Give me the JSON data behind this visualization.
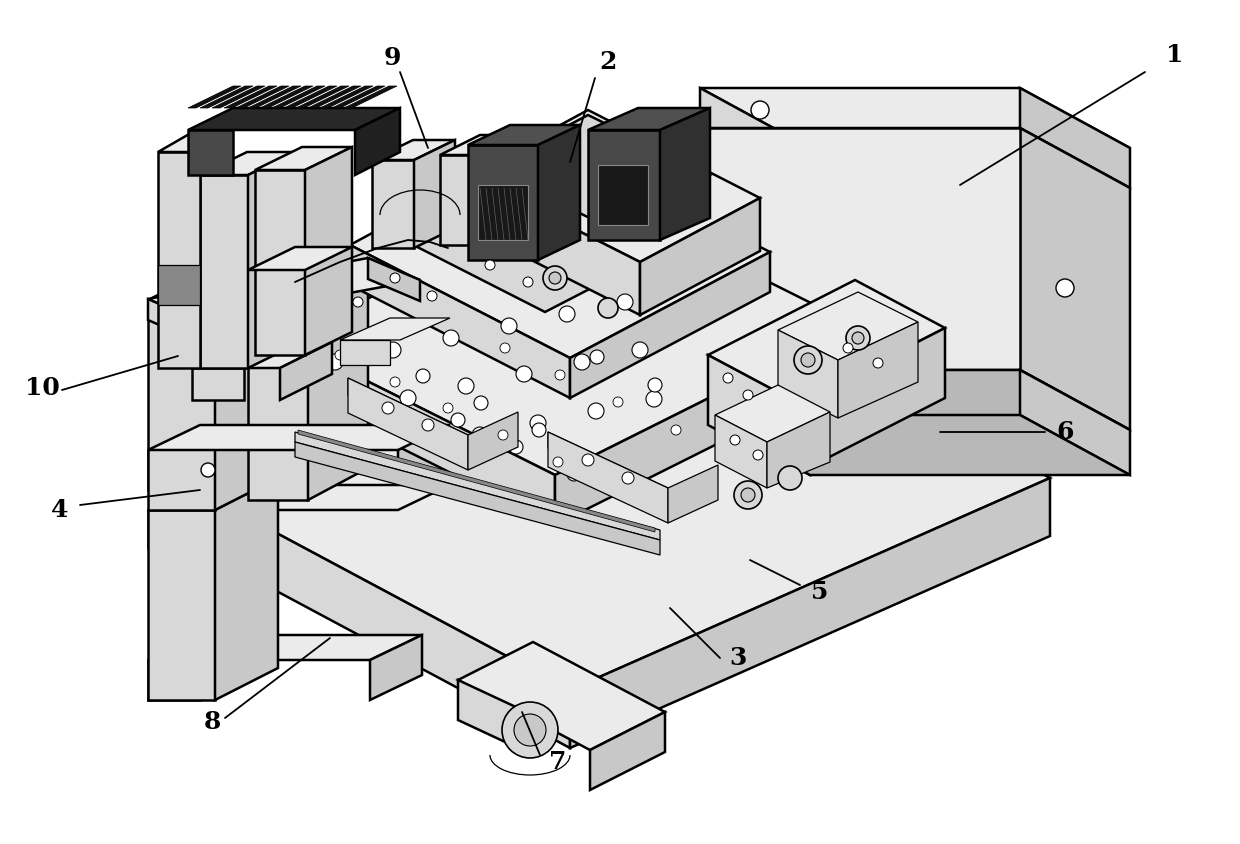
{
  "background_color": "#ffffff",
  "line_color": "#000000",
  "figure_width": 12.4,
  "figure_height": 8.44,
  "dpi": 100,
  "font_size": 18,
  "font_weight": "bold",
  "font_family": "serif",
  "lw_main": 1.8,
  "lw_thin": 0.9,
  "lw_detail": 0.5,
  "annotations": [
    [
      "1",
      1175,
      55,
      1145,
      72,
      960,
      185
    ],
    [
      "2",
      608,
      62,
      595,
      78,
      570,
      162
    ],
    [
      "3",
      738,
      658,
      720,
      658,
      670,
      608
    ],
    [
      "4",
      60,
      510,
      80,
      505,
      200,
      490
    ],
    [
      "5",
      820,
      592,
      800,
      585,
      750,
      560
    ],
    [
      "6",
      1065,
      432,
      1045,
      432,
      940,
      432
    ],
    [
      "7",
      558,
      762,
      540,
      755,
      522,
      712
    ],
    [
      "8",
      212,
      722,
      225,
      718,
      330,
      638
    ],
    [
      "9",
      392,
      58,
      400,
      72,
      428,
      148
    ],
    [
      "10",
      42,
      388,
      62,
      390,
      178,
      356
    ]
  ]
}
